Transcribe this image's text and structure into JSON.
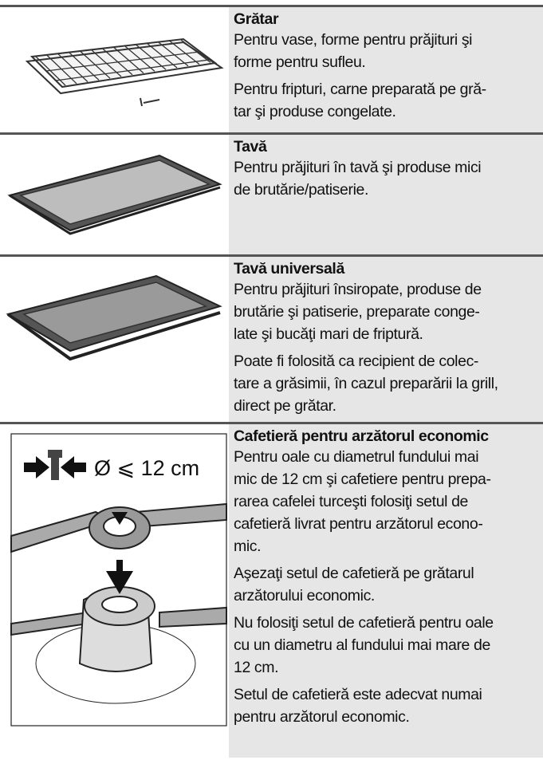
{
  "rows": [
    {
      "title": "Grătar",
      "paragraphs": [
        [
          "Pentru vase, forme pentru prăjituri şi",
          "forme pentru sufleu."
        ],
        [
          "Pentru fripturi, carne preparată pe gră-",
          "tar şi produse congelate."
        ]
      ]
    },
    {
      "title": "Tavă",
      "paragraphs": [
        [
          "Pentru prăjituri în tavă şi produse mici",
          "de brutărie/patiserie."
        ]
      ]
    },
    {
      "title": "Tavă universală",
      "paragraphs": [
        [
          "Pentru prăjituri însiropate, produse de",
          "brutărie şi patiserie, preparate conge-",
          "late şi bucăţi mari de friptură."
        ],
        [
          "Poate fi folosită ca recipient de colec-",
          "tare a grăsimii, în cazul preparării la grill,",
          "direct pe grătar."
        ]
      ]
    },
    {
      "title": "Cafetieră pentru arzătorul economic",
      "image_label": "Ø ⩽ 12 cm",
      "paragraphs": [
        [
          "Pentru oale cu diametrul fundului mai",
          "mic de 12 cm şi cafetiere pentru prepa-",
          "rarea cafelei turceşti folosiţi setul de",
          "cafetieră livrat pentru arzătorul econo-",
          "mic."
        ],
        [
          "Aşezaţi setul de cafetieră pe grătarul",
          "arzătorului economic."
        ],
        [
          "Nu folosiţi setul de cafetieră pentru oale",
          "cu un diametru al fundului mai mare de",
          "12 cm."
        ],
        [
          "Setul de cafetieră este adecvat numai",
          "pentru arzătorul economic."
        ]
      ]
    }
  ]
}
